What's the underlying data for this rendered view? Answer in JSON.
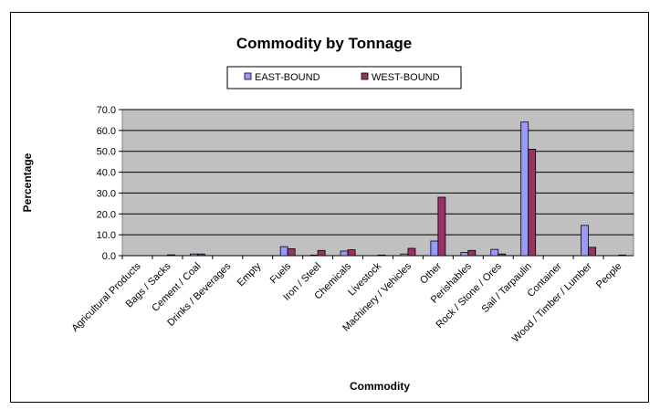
{
  "chart_data": {
    "type": "bar",
    "title": "Commodity by Tonnage",
    "xlabel": "Commodity",
    "ylabel": "Percentage",
    "ylim": [
      0,
      70
    ],
    "yticks": [
      "0.0",
      "10.0",
      "20.0",
      "30.0",
      "40.0",
      "50.0",
      "60.0",
      "70.0"
    ],
    "grid": true,
    "legend_position": "top-center",
    "categories": [
      "Agricultural Products",
      "Bags / Sacks",
      "Cement / Coal",
      "Drinks / Beverages",
      "Empty",
      "Fuels",
      "Iron / Steel",
      "Chemicals",
      "Livestock",
      "Machinery / Vehicles",
      "Other",
      "Perishables",
      "Rock / Stone / Ores",
      "Sail / Tarpaulin",
      "Container",
      "Wood / Timber / Lumber",
      "People"
    ],
    "series": [
      {
        "name": "EAST-BOUND",
        "color": "#9999ff",
        "values": [
          0,
          0,
          0.8,
          0,
          0,
          4.3,
          0.3,
          2.2,
          0,
          0.8,
          7.0,
          1.5,
          3.0,
          64.0,
          0,
          14.5,
          0
        ]
      },
      {
        "name": "WEST-BOUND",
        "color": "#993366",
        "values": [
          0,
          0.4,
          0.8,
          0,
          0,
          3.3,
          2.5,
          2.8,
          0.3,
          3.5,
          28.0,
          2.5,
          0.8,
          51.0,
          0,
          4.0,
          0.3
        ]
      }
    ]
  }
}
